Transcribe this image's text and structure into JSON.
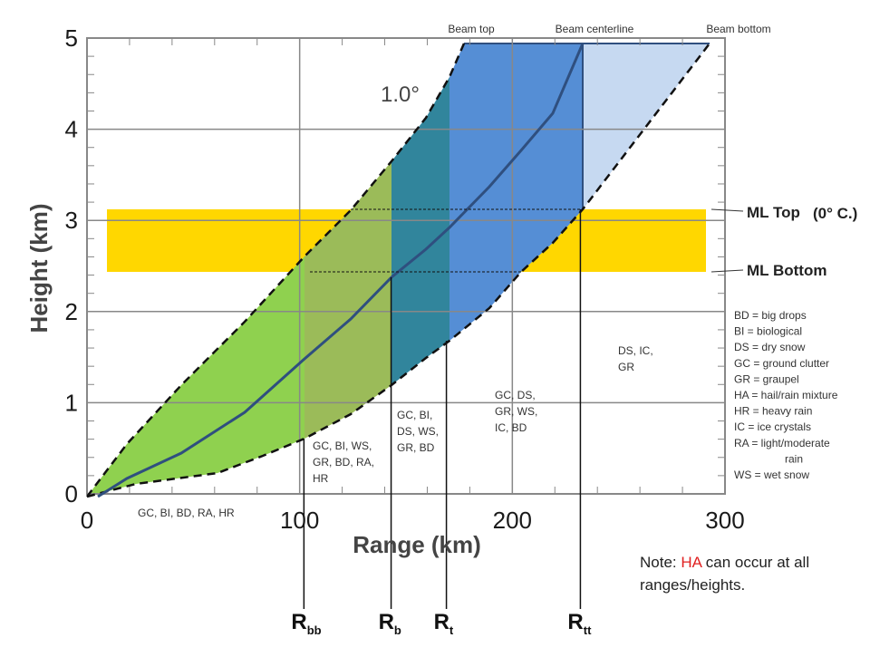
{
  "beam": {
    "top_label": "Beam top",
    "center_label": "Beam centerline",
    "bottom_label": "Beam bottom",
    "elevation_label": "1.0°"
  },
  "axes": {
    "xlabel": "Range (km)",
    "ylabel": "Height (km)",
    "xticks": [
      "0",
      "100",
      "200",
      "300"
    ],
    "yticks": [
      "0",
      "1",
      "2",
      "3",
      "4",
      "5"
    ],
    "xlim": [
      0,
      300
    ],
    "ylim": [
      0,
      5
    ]
  },
  "melting_layer": {
    "top_label": "ML Top",
    "top_extra": "(0° C.)",
    "bottom_label": "ML Bottom",
    "top_height_km": 3.15,
    "bottom_height_km": 2.45,
    "color": "#FFD700"
  },
  "range_markers": [
    {
      "main": "R",
      "sub": "bb",
      "range_km": 102
    },
    {
      "main": "R",
      "sub": "b",
      "range_km": 143
    },
    {
      "main": "R",
      "sub": "t",
      "range_km": 169
    },
    {
      "main": "R",
      "sub": "tt",
      "range_km": 232
    }
  ],
  "zones": [
    {
      "lines": [
        "GC, BI, BD, RA, HR"
      ],
      "color": "#8FD14F"
    },
    {
      "lines": [
        "GC, BI, WS,",
        "GR, BD, RA,",
        "HR"
      ],
      "color": "#9BBB59"
    },
    {
      "lines": [
        "GC, BI,",
        "DS, WS,",
        "GR, BD"
      ],
      "color": "#31859C"
    },
    {
      "lines": [
        "GC, DS,",
        "GR, WS,",
        "IC, BD"
      ],
      "color": "#558ED5"
    },
    {
      "lines": [
        "DS, IC,",
        "GR"
      ],
      "color": "#C6D9F1"
    }
  ],
  "legend": [
    "BD = big drops",
    "BI = biological",
    "DS = dry snow",
    "GC = ground clutter",
    "GR = graupel",
    "HA = hail/rain mixture",
    "HR = heavy rain",
    "IC = ice crystals",
    "RA = light/moderate",
    "rain",
    "WS = wet snow"
  ],
  "note": {
    "prefix": "Note: ",
    "highlight": "HA",
    "suffix": " can occur at all ranges/heights.",
    "highlight_color": "#E02020"
  }
}
